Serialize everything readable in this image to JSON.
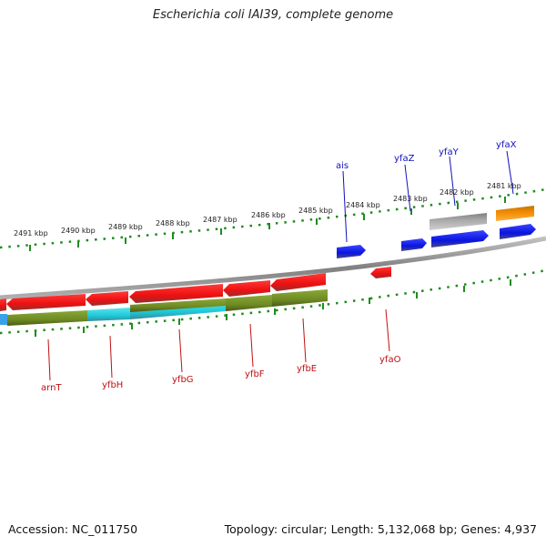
{
  "title": "Escherichia coli IAI39, complete genome",
  "accession_text": "Accession: NC_011750",
  "summary_text": "Topology: circular; Length: 5,132,068 bp; Genes: 4,937",
  "scale_labels": [
    "2481 kbp",
    "2482 kbp",
    "2483 kbp",
    "2484 kbp",
    "2485 kbp",
    "2486 kbp",
    "2487 kbp",
    "2488 kbp",
    "2489 kbp",
    "2490 kbp",
    "2491 kbp"
  ],
  "gene_labels_forward": [
    "ais",
    "yfaZ",
    "yfaY",
    "yfaX"
  ],
  "gene_labels_reverse": [
    "arnT",
    "yfbH",
    "yfbG",
    "yfbF",
    "yfbE",
    "yfaO"
  ],
  "colors": {
    "forward_gene": "#0a14e0",
    "reverse_gene": "#ee1010",
    "backbone": "#808080",
    "tick": "#1e8c1e",
    "olive_feature": "#6e8a23",
    "cyan_feature": "#1ec8d8",
    "orange_feature": "#f08a00",
    "gray_feature": "#a8a8a8",
    "forward_label": "#1010c0",
    "reverse_label": "#c01010"
  }
}
